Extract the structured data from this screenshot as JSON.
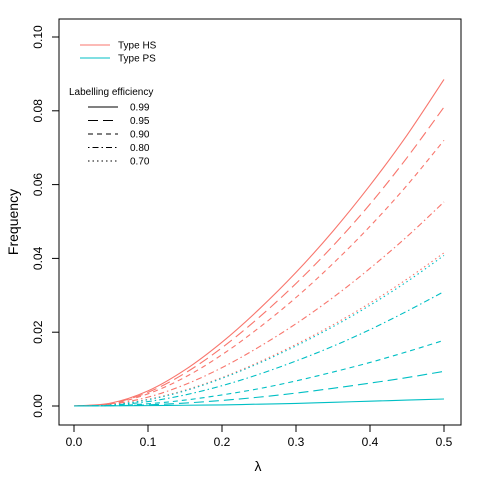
{
  "chart_data": {
    "type": "line",
    "xlabel": "λ",
    "ylabel": "Frequency",
    "xlim": [
      0,
      0.5
    ],
    "ylim": [
      0,
      0.1
    ],
    "xticks": [
      0.0,
      0.1,
      0.2,
      0.3,
      0.4,
      0.5
    ],
    "xtick_labels": [
      "0.0",
      "0.1",
      "0.2",
      "0.3",
      "0.4",
      "0.5"
    ],
    "yticks": [
      0.0,
      0.02,
      0.04,
      0.06,
      0.08,
      0.1
    ],
    "ytick_labels": [
      "0.00",
      "0.02",
      "0.04",
      "0.06",
      "0.08",
      "0.10"
    ],
    "grid": false,
    "legend_placement": "top-left",
    "type_legend": [
      {
        "label": "Type HS",
        "color": "#F8766D"
      },
      {
        "label": "Type PS",
        "color": "#00BFC4"
      }
    ],
    "efficiency_legend": {
      "title": "Labelling efficiency",
      "entries": [
        {
          "label": "0.99",
          "linetype": "solid"
        },
        {
          "label": "0.95",
          "linetype": "longdash"
        },
        {
          "label": "0.90",
          "linetype": "dashed"
        },
        {
          "label": "0.80",
          "linetype": "dotdash"
        },
        {
          "label": "0.70",
          "linetype": "dotted"
        }
      ]
    },
    "x": [
      0.0,
      0.05,
      0.1,
      0.15,
      0.2,
      0.25,
      0.3,
      0.35,
      0.4,
      0.45,
      0.5
    ],
    "series": [
      {
        "type": "Type HS",
        "efficiency": "0.99",
        "linetype": "solid",
        "color": "#F8766D",
        "values": [
          0.0,
          0.0008,
          0.0041,
          0.0098,
          0.0173,
          0.0262,
          0.0362,
          0.0474,
          0.0598,
          0.0734,
          0.0885
        ]
      },
      {
        "type": "Type HS",
        "efficiency": "0.95",
        "linetype": "longdash",
        "color": "#F8766D",
        "values": [
          0.0,
          0.0007,
          0.0037,
          0.0089,
          0.0158,
          0.024,
          0.0332,
          0.0434,
          0.0547,
          0.0673,
          0.081
        ]
      },
      {
        "type": "Type HS",
        "efficiency": "0.90",
        "linetype": "dashed",
        "color": "#F8766D",
        "values": [
          0.0,
          0.0006,
          0.0033,
          0.0078,
          0.0139,
          0.0212,
          0.0294,
          0.0386,
          0.0487,
          0.0598,
          0.072
        ]
      },
      {
        "type": "Type HS",
        "efficiency": "0.80",
        "linetype": "dotdash",
        "color": "#F8766D",
        "values": [
          0.0,
          0.0005,
          0.0024,
          0.0058,
          0.0104,
          0.016,
          0.0223,
          0.0294,
          0.0373,
          0.0459,
          0.0553
        ]
      },
      {
        "type": "Type HS",
        "efficiency": "0.70",
        "linetype": "dotted",
        "color": "#F8766D",
        "values": [
          0.0,
          0.0003,
          0.0018,
          0.0043,
          0.0077,
          0.0119,
          0.0167,
          0.022,
          0.0279,
          0.0344,
          0.0415
        ]
      },
      {
        "type": "Type PS",
        "efficiency": "0.70",
        "linetype": "dotted",
        "color": "#00BFC4",
        "values": [
          0.0,
          0.0003,
          0.0017,
          0.0041,
          0.0075,
          0.0116,
          0.0163,
          0.0215,
          0.0273,
          0.0337,
          0.0408
        ]
      },
      {
        "type": "Type PS",
        "efficiency": "0.80",
        "linetype": "dotdash",
        "color": "#00BFC4",
        "values": [
          0.0,
          0.0002,
          0.0012,
          0.003,
          0.0055,
          0.0086,
          0.0122,
          0.0162,
          0.0207,
          0.0257,
          0.031
        ]
      },
      {
        "type": "Type PS",
        "efficiency": "0.90",
        "linetype": "dashed",
        "color": "#00BFC4",
        "values": [
          0.0,
          0.0001,
          0.0006,
          0.0016,
          0.003,
          0.0047,
          0.0068,
          0.0092,
          0.0118,
          0.0147,
          0.0178
        ]
      },
      {
        "type": "Type PS",
        "efficiency": "0.95",
        "linetype": "longdash",
        "color": "#00BFC4",
        "values": [
          0.0,
          0.0001,
          0.0003,
          0.0008,
          0.0015,
          0.0024,
          0.0035,
          0.0048,
          0.0062,
          0.0077,
          0.0094
        ]
      },
      {
        "type": "Type PS",
        "efficiency": "0.99",
        "linetype": "solid",
        "color": "#00BFC4",
        "values": [
          0.0,
          5e-05,
          0.0001,
          0.0002,
          0.0003,
          0.0005,
          0.0007,
          0.001,
          0.0013,
          0.0016,
          0.0019
        ]
      }
    ]
  }
}
